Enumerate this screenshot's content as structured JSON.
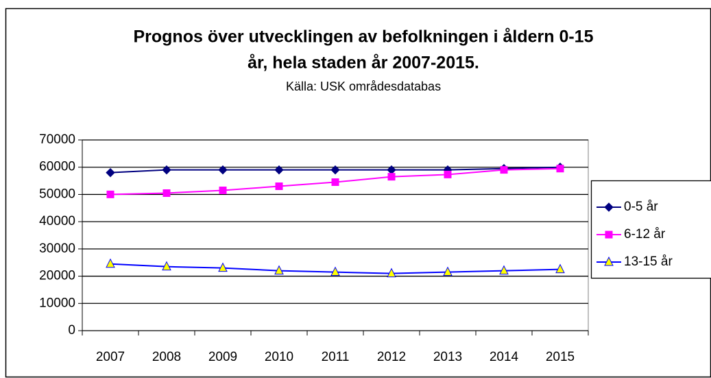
{
  "chart_data": {
    "type": "line",
    "title": [
      "Prognos över utvecklingen av befolkningen i åldern 0-15",
      "år, hela staden år 2007-2015."
    ],
    "subtitle": "Källa: USK områdesdatabas",
    "categories": [
      "2007",
      "2008",
      "2009",
      "2010",
      "2011",
      "2012",
      "2013",
      "2014",
      "2015"
    ],
    "series": [
      {
        "name": "0-5 år",
        "color": "#000080",
        "marker": "diamond",
        "marker_color": "#000080",
        "values": [
          58000,
          59000,
          59000,
          59000,
          59000,
          59000,
          59000,
          59500,
          60000
        ]
      },
      {
        "name": "6-12 år",
        "color": "#ff00ff",
        "marker": "square",
        "marker_color": "#ff00ff",
        "values": [
          50000,
          50500,
          51500,
          53000,
          54500,
          56500,
          57300,
          59000,
          59500
        ]
      },
      {
        "name": "13-15 år",
        "color": "#0000ff",
        "marker": "triangle",
        "marker_color": "#ffff00",
        "values": [
          24500,
          23500,
          23000,
          22000,
          21500,
          21000,
          21500,
          22000,
          22500
        ]
      }
    ],
    "ylim": [
      0,
      70000
    ],
    "yticks": [
      0,
      10000,
      20000,
      30000,
      40000,
      50000,
      60000,
      70000
    ],
    "grid": true,
    "legend": "right"
  }
}
